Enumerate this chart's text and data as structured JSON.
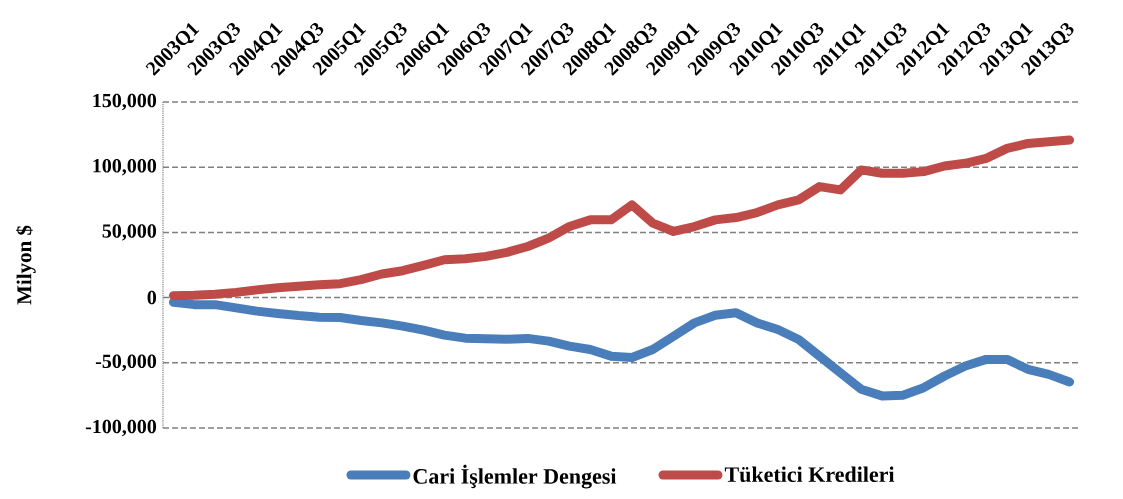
{
  "chart_data": {
    "type": "line",
    "ylabel": "Milyon $",
    "categories": [
      "2003Q1",
      null,
      "2003Q3",
      null,
      "2004Q1",
      null,
      "2004Q3",
      null,
      "2005Q1",
      null,
      "2005Q3",
      null,
      "2006Q1",
      null,
      "2006Q3",
      null,
      "2007Q1",
      null,
      "2007Q3",
      null,
      "2008Q1",
      null,
      "2008Q3",
      null,
      "2009Q1",
      null,
      "2009Q3",
      null,
      "2010Q1",
      null,
      "2010Q3",
      null,
      "2011Q1",
      null,
      "2011Q3",
      null,
      "2012Q1",
      null,
      "2012Q3",
      null,
      "2013Q1",
      null,
      "2013Q3",
      null
    ],
    "series": [
      {
        "name": "Cari İşlemler Dengesi",
        "color": "#4a7ebb",
        "values": [
          -3600,
          -5400,
          -5400,
          -7900,
          -10400,
          -12200,
          -13800,
          -15000,
          -15300,
          -17600,
          -19400,
          -21900,
          -25000,
          -28800,
          -31100,
          -31600,
          -31900,
          -31300,
          -33400,
          -37200,
          -39800,
          -44900,
          -46000,
          -39800,
          -29600,
          -19400,
          -13500,
          -11700,
          -19400,
          -24500,
          -32100,
          -44900,
          -57600,
          -70300,
          -75400,
          -74900,
          -69100,
          -60100,
          -52500,
          -47400,
          -47400,
          -55000,
          -58900,
          -64700
        ]
      },
      {
        "name": "Tüketici Kredileri",
        "color": "#be4b48",
        "values": [
          1500,
          1800,
          2500,
          4000,
          5900,
          7600,
          8700,
          9900,
          10700,
          13800,
          18100,
          20600,
          24700,
          29000,
          29800,
          31600,
          34700,
          39200,
          45600,
          54500,
          59600,
          59600,
          71100,
          57100,
          50700,
          54500,
          59600,
          61400,
          65200,
          71100,
          74900,
          85100,
          82600,
          97900,
          95300,
          95300,
          96600,
          100900,
          103000,
          106800,
          114400,
          118200,
          119500,
          120800
        ]
      }
    ],
    "ylim": [
      -100000,
      150000
    ],
    "yticks": [
      {
        "value": -100000,
        "label": "-100,000"
      },
      {
        "value": -50000,
        "label": "-50,000"
      },
      {
        "value": 0,
        "label": "0"
      },
      {
        "value": 50000,
        "label": "50,000"
      },
      {
        "value": 100000,
        "label": "100,000"
      },
      {
        "value": 150000,
        "label": "150,000"
      }
    ],
    "grid": "y",
    "legend": "bottom",
    "marker": "none",
    "line_style": "solid"
  }
}
